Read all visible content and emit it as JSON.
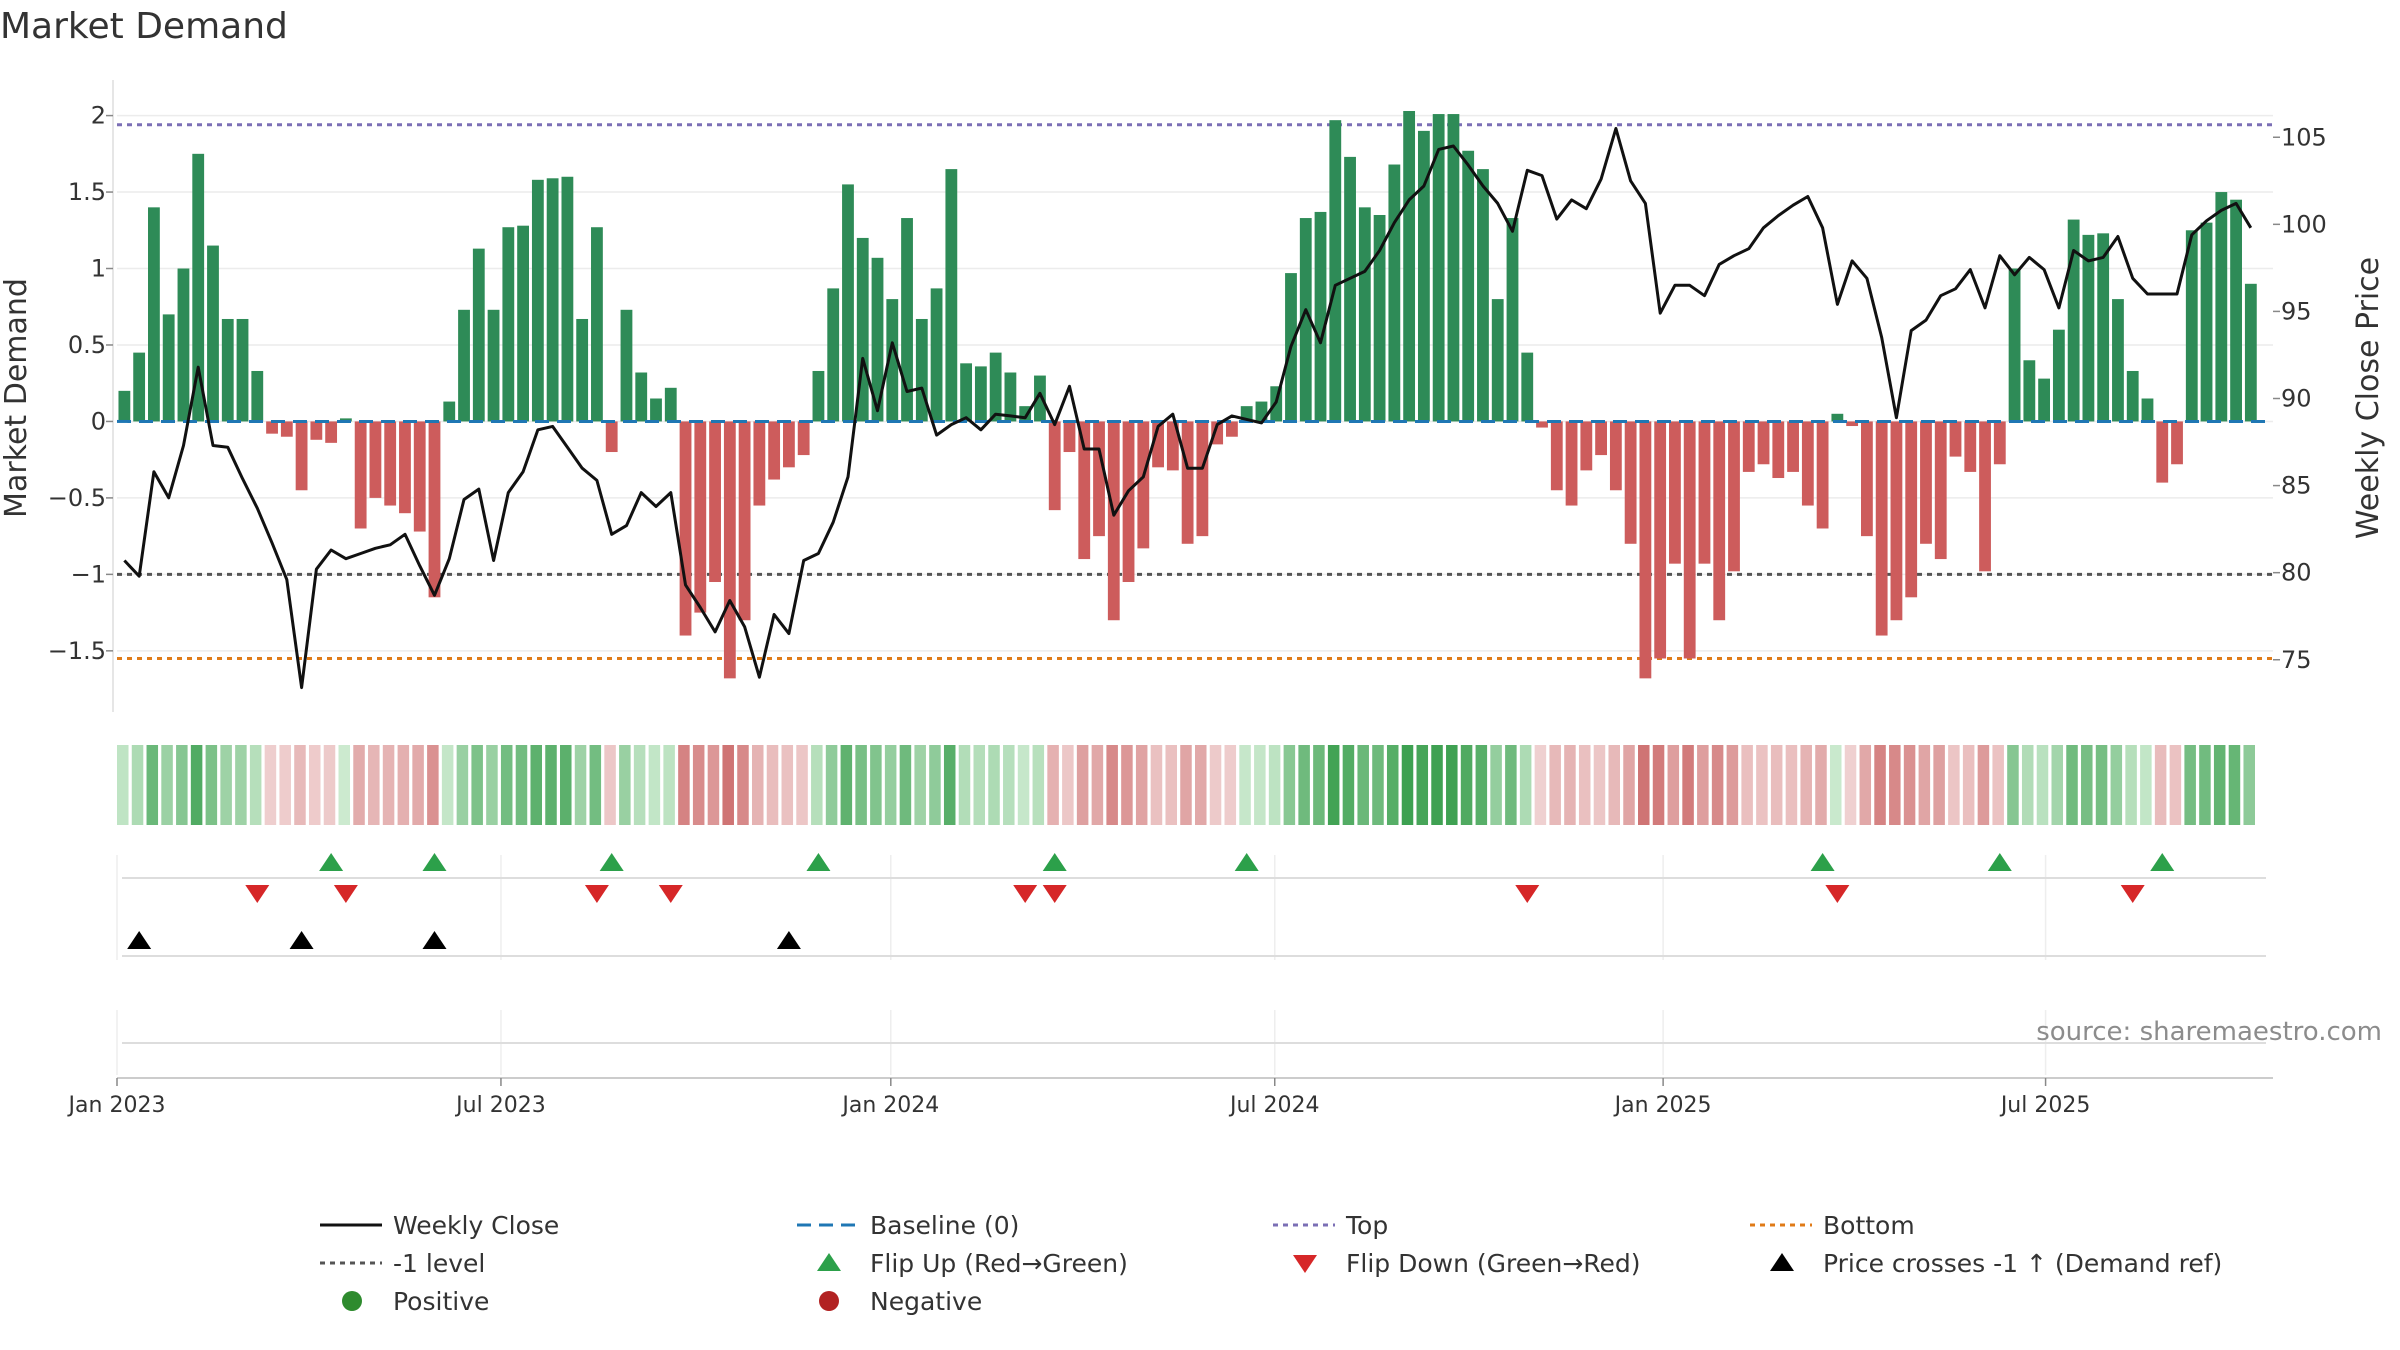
{
  "chart_data": {
    "type": "bar",
    "title": "Market Demand",
    "ylabel": "Market Demand",
    "y2label": "Weekly Close Price",
    "ylim": [
      -1.9,
      2.2
    ],
    "y2lim": [
      72,
      108
    ],
    "yticks": [
      {
        "v": 2,
        "t": "2"
      },
      {
        "v": 1.5,
        "t": "1.5"
      },
      {
        "v": 1,
        "t": "1"
      },
      {
        "v": 0.5,
        "t": "0.5"
      },
      {
        "v": 0,
        "t": "0"
      },
      {
        "v": -0.5,
        "t": "−0.5"
      },
      {
        "v": -1,
        "t": "−1"
      },
      {
        "v": -1.5,
        "t": "−1.5"
      }
    ],
    "y2ticks": [
      {
        "v": 105,
        "t": "105"
      },
      {
        "v": 100,
        "t": "100"
      },
      {
        "v": 95,
        "t": "95"
      },
      {
        "v": 90,
        "t": "90"
      },
      {
        "v": 85,
        "t": "85"
      },
      {
        "v": 80,
        "t": "80"
      },
      {
        "v": 75,
        "t": "75"
      }
    ],
    "x_start": "2023-01-01",
    "week_count": 146,
    "xticks": [
      {
        "week": 0,
        "t": "Jan 2023"
      },
      {
        "week": 26,
        "t": "Jul 2023"
      },
      {
        "week": 52.4,
        "t": "Jan 2024"
      },
      {
        "week": 78.4,
        "t": "Jul 2024"
      },
      {
        "week": 104.7,
        "t": "Jan 2025"
      },
      {
        "week": 130.6,
        "t": "Jul 2025"
      }
    ],
    "top_level": 1.94,
    "minus1_level": -1.0,
    "bottom_level": -1.55,
    "series": [
      {
        "name": "Market Demand",
        "values": [
          0.2,
          0.45,
          1.4,
          0.7,
          1.0,
          1.75,
          1.15,
          0.67,
          0.67,
          0.33,
          -0.08,
          -0.1,
          -0.45,
          -0.12,
          -0.14,
          0.02,
          -0.7,
          -0.5,
          -0.55,
          -0.6,
          -0.72,
          -1.15,
          0.13,
          0.73,
          1.13,
          0.73,
          1.27,
          1.28,
          1.58,
          1.59,
          1.6,
          0.67,
          1.27,
          -0.2,
          0.73,
          0.32,
          0.15,
          0.22,
          -1.4,
          -1.25,
          -1.05,
          -1.68,
          -1.3,
          -0.55,
          -0.38,
          -0.3,
          -0.22,
          0.33,
          0.87,
          1.55,
          1.2,
          1.07,
          0.8,
          1.33,
          0.67,
          0.87,
          1.65,
          0.38,
          0.36,
          0.45,
          0.32,
          0.1,
          0.3,
          -0.58,
          -0.2,
          -0.9,
          -0.75,
          -1.3,
          -1.05,
          -0.83,
          -0.3,
          -0.32,
          -0.8,
          -0.75,
          -0.15,
          -0.1,
          0.1,
          0.13,
          0.23,
          0.97,
          1.33,
          1.37,
          1.97,
          1.73,
          1.4,
          1.35,
          1.68,
          2.03,
          1.9,
          2.01,
          2.01,
          1.77,
          1.65,
          0.8,
          1.33,
          0.45,
          -0.04,
          -0.45,
          -0.55,
          -0.32,
          -0.22,
          -0.45,
          -0.8,
          -1.68,
          -1.55,
          -0.93,
          -1.55,
          -0.93,
          -1.3,
          -0.98,
          -0.33,
          -0.28,
          -0.37,
          -0.33,
          -0.55,
          -0.7,
          0.05,
          -0.03,
          -0.75,
          -1.4,
          -1.3,
          -1.15,
          -0.8,
          -0.9,
          -0.23,
          -0.33,
          -0.98,
          -0.28,
          1.0,
          0.4,
          0.28,
          0.6,
          1.32,
          1.22,
          1.23,
          0.8,
          0.33,
          0.15,
          -0.4,
          -0.28,
          1.25,
          1.3,
          1.5,
          1.45,
          0.9
        ]
      },
      {
        "name": "Weekly Close",
        "values": [
          80.7,
          79.8,
          85.8,
          84.3,
          87.3,
          91.8,
          87.3,
          87.2,
          85.4,
          83.7,
          81.7,
          79.6,
          73.4,
          80.2,
          81.3,
          80.8,
          81.1,
          81.4,
          81.6,
          82.2,
          80.4,
          78.7,
          80.8,
          84.2,
          84.8,
          80.7,
          84.6,
          85.8,
          88.2,
          88.4,
          87.2,
          86,
          85.3,
          82.2,
          82.7,
          84.6,
          83.8,
          84.6,
          79.3,
          78,
          76.6,
          78.4,
          76.9,
          74,
          77.6,
          76.5,
          80.7,
          81.1,
          82.9,
          85.5,
          92.3,
          89.3,
          93.2,
          90.4,
          90.6,
          87.9,
          88.5,
          88.9,
          88.2,
          89.1,
          89,
          88.9,
          90.3,
          88.5,
          90.7,
          87.1,
          87.1,
          83.3,
          84.7,
          85.5,
          88.4,
          89.1,
          86,
          86,
          88.5,
          89,
          88.8,
          88.6,
          89.8,
          93,
          95.1,
          93.2,
          96.5,
          96.9,
          97.3,
          98.5,
          100.1,
          101.4,
          102.2,
          104.3,
          104.5,
          103.4,
          102.2,
          101.2,
          99.6,
          103.1,
          102.8,
          100.3,
          101.4,
          100.9,
          102.6,
          105.5,
          102.5,
          101.2,
          94.9,
          96.5,
          96.5,
          95.9,
          97.7,
          98.2,
          98.6,
          99.8,
          100.5,
          101.1,
          101.6,
          99.8,
          95.4,
          97.9,
          96.9,
          93.5,
          88.9,
          93.9,
          94.5,
          95.9,
          96.3,
          97.4,
          95.2,
          98.2,
          97.1,
          98.1,
          97.4,
          95.2,
          98.5,
          97.9,
          98.1,
          99.3,
          96.9,
          96,
          96,
          96,
          99.4,
          100.2,
          100.8,
          101.2,
          99.8
        ]
      }
    ],
    "flip_up_weeks": [
      14,
      21,
      33,
      47,
      63,
      76,
      115,
      127,
      138
    ],
    "flip_down_weeks": [
      9,
      15,
      32,
      37,
      61,
      63,
      95,
      116,
      136
    ],
    "price_cross_weeks": [
      1,
      12,
      21,
      45
    ],
    "legend": [
      {
        "key": "weekly_close",
        "label": "Weekly Close",
        "color": "#111111"
      },
      {
        "key": "baseline",
        "label": "Baseline (0)",
        "color": "#1f77b4"
      },
      {
        "key": "top",
        "label": "Top",
        "color": "#7b6fb5"
      },
      {
        "key": "bottom",
        "label": "Bottom",
        "color": "#e07b18"
      },
      {
        "key": "minus1",
        "label": "-1 level",
        "color": "#555555"
      },
      {
        "key": "flip_up",
        "label": "Flip Up (Red→Green)",
        "color": "#2ca04a"
      },
      {
        "key": "flip_down",
        "label": "Flip Down (Green→Red)",
        "color": "#d62728"
      },
      {
        "key": "price_cross",
        "label": "Price crosses -1 ↑ (Demand ref)",
        "color": "#000000"
      },
      {
        "key": "positive",
        "label": "Positive",
        "color": "#2e8b2e"
      },
      {
        "key": "negative",
        "label": "Negative",
        "color": "#b22222"
      }
    ],
    "colors": {
      "positive_bar": "#2e8b57",
      "negative_bar": "#cd5c5c",
      "price_line": "#111111",
      "baseline": "#1f77b4",
      "top": "#7b6fb5",
      "bottom": "#e07b18",
      "minus1": "#555555",
      "flip_up": "#2ca04a",
      "flip_down": "#d62728",
      "price_cross": "#000000"
    },
    "source": "source: sharemaestro.com"
  }
}
